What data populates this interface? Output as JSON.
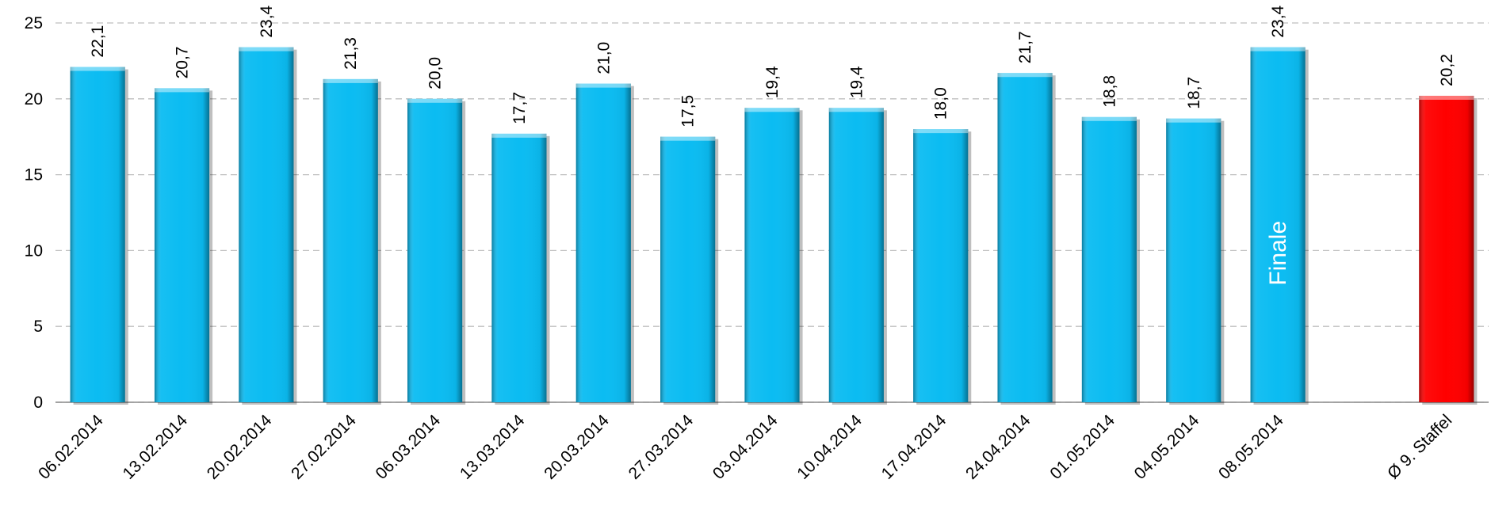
{
  "chart_data": {
    "type": "bar",
    "categories": [
      "06.02.2014",
      "13.02.2014",
      "20.02.2014",
      "27.02.2014",
      "06.03.2014",
      "13.03.2014",
      "20.03.2014",
      "27.03.2014",
      "03.04.2014",
      "10.04.2014",
      "17.04.2014",
      "24.04.2014",
      "01.05.2014",
      "04.05.2014",
      "08.05.2014",
      null,
      "Ø 9. Staffel"
    ],
    "values": [
      22.1,
      20.7,
      23.4,
      21.3,
      20.0,
      17.7,
      21.0,
      17.5,
      19.4,
      19.4,
      18.0,
      21.7,
      18.8,
      18.7,
      23.4,
      null,
      20.2
    ],
    "value_labels": [
      "22,1",
      "20,7",
      "23,4",
      "21,3",
      "20,0",
      "17,7",
      "21,0",
      "17,5",
      "19,4",
      "19,4",
      "18,0",
      "21,7",
      "18,8",
      "18,7",
      "23,4",
      null,
      "20,2"
    ],
    "colors": [
      "#0bbcf2",
      "#0bbcf2",
      "#0bbcf2",
      "#0bbcf2",
      "#0bbcf2",
      "#0bbcf2",
      "#0bbcf2",
      "#0bbcf2",
      "#0bbcf2",
      "#0bbcf2",
      "#0bbcf2",
      "#0bbcf2",
      "#0bbcf2",
      "#0bbcf2",
      "#0bbcf2",
      null,
      "#ff0000"
    ],
    "ylim": [
      0,
      25
    ],
    "yticks": [
      0,
      5,
      10,
      15,
      20,
      25
    ],
    "grid": true,
    "annotations": [
      {
        "text": "Finale",
        "x": "08.05.2014"
      }
    ]
  }
}
